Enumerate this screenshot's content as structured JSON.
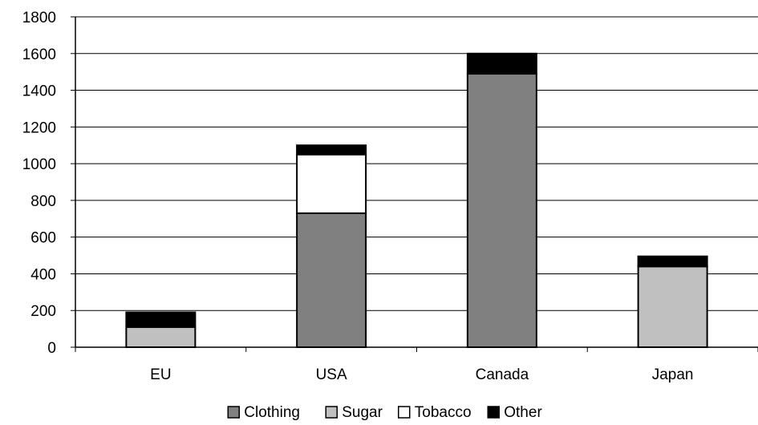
{
  "chart_data": {
    "type": "bar",
    "stacked": true,
    "categories": [
      "EU",
      "USA",
      "Canada",
      "Japan"
    ],
    "series": [
      {
        "name": "Clothing",
        "values": [
          0,
          730,
          1490,
          0
        ],
        "color": "#808080"
      },
      {
        "name": "Sugar",
        "values": [
          110,
          0,
          0,
          440
        ],
        "color": "#c0c0c0"
      },
      {
        "name": "Tobacco",
        "values": [
          0,
          320,
          0,
          0
        ],
        "color": "#ffffff"
      },
      {
        "name": "Other",
        "values": [
          80,
          50,
          110,
          55
        ],
        "color": "#000000"
      }
    ],
    "y_ticks": [
      "0",
      "200",
      "400",
      "600",
      "800",
      "1000",
      "1200",
      "1400",
      "1600",
      "1800"
    ],
    "ylim": [
      0,
      1800
    ],
    "grid": true,
    "legend_position": "bottom"
  }
}
